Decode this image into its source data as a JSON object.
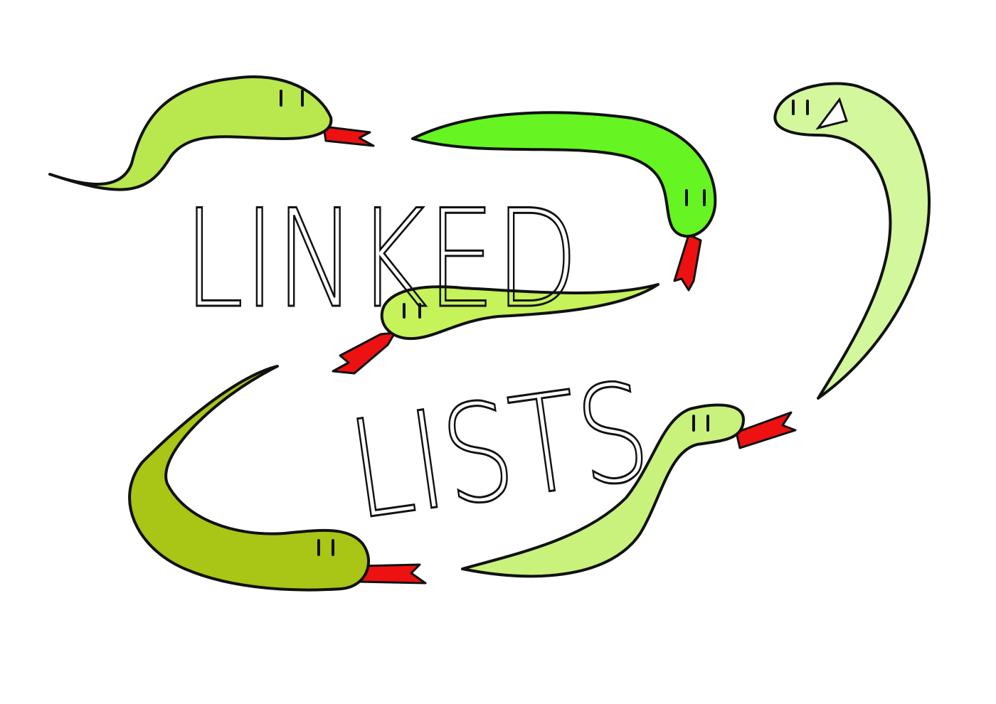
{
  "title": {
    "line1": "LINKED",
    "line2": "LISTS"
  }
}
